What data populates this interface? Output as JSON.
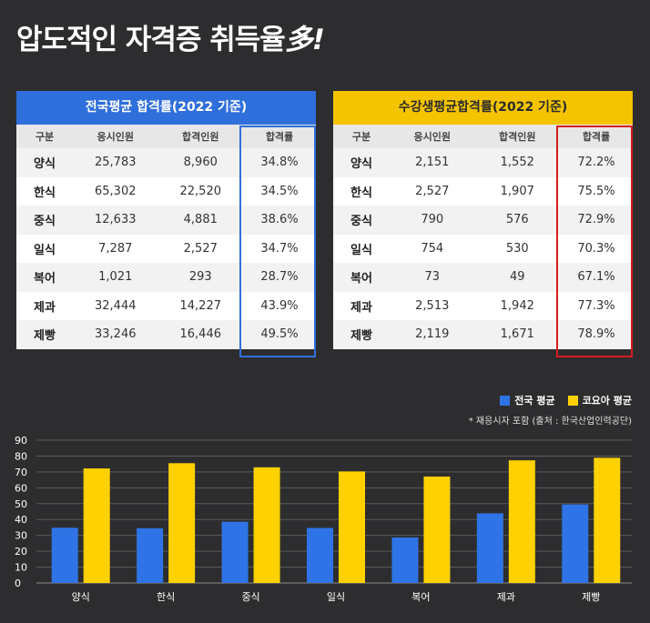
{
  "headline": {
    "text": "압도적인 자격증 취득율",
    "suffix": "多!"
  },
  "tables": [
    {
      "title": "전국평균 합격률(2022 기준)",
      "headers": [
        "구분",
        "응시인원",
        "합격인원",
        "합격률"
      ],
      "rows": [
        [
          "양식",
          "25,783",
          "8,960",
          "34.8%"
        ],
        [
          "한식",
          "65,302",
          "22,520",
          "34.5%"
        ],
        [
          "중식",
          "12,633",
          "4,881",
          "38.6%"
        ],
        [
          "일식",
          "7,287",
          "2,527",
          "34.7%"
        ],
        [
          "복어",
          "1,021",
          "293",
          "28.7%"
        ],
        [
          "제과",
          "32,444",
          "14,227",
          "43.9%"
        ],
        [
          "제빵",
          "33,246",
          "16,446",
          "49.5%"
        ]
      ]
    },
    {
      "title": "수강생평균합격률(2022 기준)",
      "headers": [
        "구분",
        "응시인원",
        "합격인원",
        "합격률"
      ],
      "rows": [
        [
          "양식",
          "2,151",
          "1,552",
          "72.2%"
        ],
        [
          "한식",
          "2,527",
          "1,907",
          "75.5%"
        ],
        [
          "중식",
          "790",
          "576",
          "72.9%"
        ],
        [
          "일식",
          "754",
          "530",
          "70.3%"
        ],
        [
          "복어",
          "73",
          "49",
          "67.1%"
        ],
        [
          "제과",
          "2,513",
          "1,942",
          "77.3%"
        ],
        [
          "제빵",
          "2,119",
          "1,671",
          "78.9%"
        ]
      ]
    }
  ],
  "note": "* 재응시자 포함 (출처 : 한국산업인력공단)",
  "colors": {
    "national": "#2f74e6",
    "school": "#ffd100",
    "grid": "#5a5a5a",
    "highlight_left": "#2f6fdb",
    "highlight_right": "#d61c1c"
  },
  "chart_data": {
    "type": "bar",
    "categories": [
      "양식",
      "한식",
      "중식",
      "일식",
      "복어",
      "제과",
      "제빵"
    ],
    "series": [
      {
        "name": "전국 평균",
        "values": [
          34.8,
          34.5,
          38.6,
          34.7,
          28.7,
          43.9,
          49.5
        ]
      },
      {
        "name": "코요아 평균",
        "values": [
          72.2,
          75.5,
          72.9,
          70.3,
          67.1,
          77.3,
          78.9
        ]
      }
    ],
    "yticks": [
      0,
      10,
      20,
      30,
      40,
      50,
      60,
      70,
      80,
      90
    ],
    "ylim": [
      0,
      90
    ],
    "grid": true,
    "legend": "top-right"
  }
}
